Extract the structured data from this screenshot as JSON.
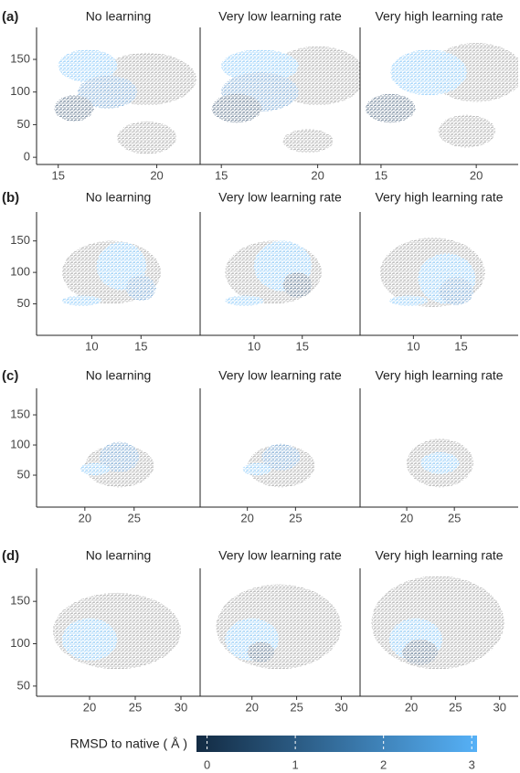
{
  "chart_data": [
    {
      "type": "scatter",
      "label": "(a)",
      "xlim": [
        13.9,
        22.2
      ],
      "xticks": [
        15,
        20
      ],
      "ylim": [
        -11,
        199
      ],
      "yticks": [
        0,
        50,
        100,
        150
      ],
      "panels": [
        {
          "title": "No learning",
          "clusters": [
            {
              "x": 19.5,
              "y": 120,
              "rx": 2.5,
              "ry": 40,
              "color": "#7f7f7f"
            },
            {
              "x": 19.5,
              "y": 30,
              "rx": 1.5,
              "ry": 25,
              "color": "#7f7f7f"
            },
            {
              "x": 16.5,
              "y": 140,
              "rx": 1.5,
              "ry": 25,
              "color": "#56b1f7"
            },
            {
              "x": 17.5,
              "y": 100,
              "rx": 1.5,
              "ry": 25,
              "color": "#3a7fc0"
            },
            {
              "x": 15.8,
              "y": 75,
              "rx": 1,
              "ry": 20,
              "color": "#1a3a5c"
            }
          ]
        },
        {
          "title": "Very low learning rate",
          "clusters": [
            {
              "x": 20,
              "y": 125,
              "rx": 2.5,
              "ry": 45,
              "color": "#7f7f7f"
            },
            {
              "x": 19.5,
              "y": 25,
              "rx": 1.3,
              "ry": 18,
              "color": "#7f7f7f"
            },
            {
              "x": 17,
              "y": 140,
              "rx": 2,
              "ry": 25,
              "color": "#56b1f7"
            },
            {
              "x": 17,
              "y": 100,
              "rx": 2,
              "ry": 30,
              "color": "#3a7fc0"
            },
            {
              "x": 15.8,
              "y": 75,
              "rx": 1.3,
              "ry": 22,
              "color": "#1a3a5c"
            }
          ]
        },
        {
          "title": "Very high learning rate",
          "clusters": [
            {
              "x": 20,
              "y": 130,
              "rx": 2.5,
              "ry": 45,
              "color": "#7f7f7f"
            },
            {
              "x": 19.5,
              "y": 40,
              "rx": 1.5,
              "ry": 25,
              "color": "#7f7f7f"
            },
            {
              "x": 17.5,
              "y": 130,
              "rx": 2,
              "ry": 35,
              "color": "#56b1f7"
            },
            {
              "x": 15.5,
              "y": 75,
              "rx": 1.3,
              "ry": 22,
              "color": "#1a3a5c"
            }
          ]
        }
      ]
    },
    {
      "type": "scatter",
      "label": "(b)",
      "xlim": [
        4.4,
        21
      ],
      "xticks": [
        10,
        15
      ],
      "ylim": [
        0,
        196
      ],
      "yticks": [
        50,
        100,
        150
      ],
      "panels": [
        {
          "title": "No learning",
          "clusters": [
            {
              "x": 12,
              "y": 100,
              "rx": 5,
              "ry": 50,
              "color": "#7f7f7f"
            },
            {
              "x": 13,
              "y": 110,
              "rx": 2.5,
              "ry": 38,
              "color": "#56b1f7"
            },
            {
              "x": 15,
              "y": 75,
              "rx": 1.5,
              "ry": 20,
              "color": "#3a7fc0"
            },
            {
              "x": 9,
              "y": 55,
              "rx": 2,
              "ry": 8,
              "color": "#56b1f7"
            }
          ]
        },
        {
          "title": "Very low learning rate",
          "clusters": [
            {
              "x": 12,
              "y": 100,
              "rx": 5,
              "ry": 50,
              "color": "#7f7f7f"
            },
            {
              "x": 13,
              "y": 110,
              "rx": 3,
              "ry": 40,
              "color": "#56b1f7"
            },
            {
              "x": 14.5,
              "y": 80,
              "rx": 1.5,
              "ry": 20,
              "color": "#1a3a5c"
            },
            {
              "x": 9,
              "y": 55,
              "rx": 2,
              "ry": 8,
              "color": "#56b1f7"
            }
          ]
        },
        {
          "title": "Very high learning rate",
          "clusters": [
            {
              "x": 12,
              "y": 100,
              "rx": 5.5,
              "ry": 55,
              "color": "#7f7f7f"
            },
            {
              "x": 13.5,
              "y": 90,
              "rx": 3,
              "ry": 40,
              "color": "#56b1f7"
            },
            {
              "x": 14.5,
              "y": 70,
              "rx": 1.8,
              "ry": 22,
              "color": "#3a7fc0"
            },
            {
              "x": 9.5,
              "y": 55,
              "rx": 2,
              "ry": 8,
              "color": "#56b1f7"
            }
          ]
        }
      ]
    },
    {
      "type": "scatter",
      "label": "(c)",
      "xlim": [
        15.1,
        31.7
      ],
      "xticks": [
        20,
        25
      ],
      "ylim": [
        -3,
        194
      ],
      "yticks": [
        50,
        100,
        150
      ],
      "panels": [
        {
          "title": "No learning",
          "clusters": [
            {
              "x": 23.5,
              "y": 65,
              "rx": 3.5,
              "ry": 35,
              "color": "#7f7f7f"
            },
            {
              "x": 23.5,
              "y": 80,
              "rx": 2,
              "ry": 25,
              "color": "#3a7fc0"
            },
            {
              "x": 21,
              "y": 60,
              "rx": 1.5,
              "ry": 10,
              "color": "#56b1f7"
            }
          ]
        },
        {
          "title": "Very low learning rate",
          "clusters": [
            {
              "x": 23.5,
              "y": 65,
              "rx": 3.5,
              "ry": 35,
              "color": "#7f7f7f"
            },
            {
              "x": 23.5,
              "y": 80,
              "rx": 2,
              "ry": 22,
              "color": "#3a7fc0"
            },
            {
              "x": 21,
              "y": 60,
              "rx": 1.5,
              "ry": 10,
              "color": "#56b1f7"
            }
          ]
        },
        {
          "title": "Very high learning rate",
          "clusters": [
            {
              "x": 23.5,
              "y": 70,
              "rx": 3.5,
              "ry": 40,
              "color": "#7f7f7f"
            },
            {
              "x": 23.5,
              "y": 70,
              "rx": 2,
              "ry": 18,
              "color": "#56b1f7"
            }
          ]
        }
      ]
    },
    {
      "type": "scatter",
      "label": "(d)",
      "xlim": [
        14.2,
        32.1
      ],
      "xticks": [
        20,
        25,
        30
      ],
      "ylim": [
        38,
        189
      ],
      "yticks": [
        50,
        100,
        150
      ],
      "panels": [
        {
          "title": "No learning",
          "clusters": [
            {
              "x": 23,
              "y": 115,
              "rx": 7,
              "ry": 45,
              "color": "#7f7f7f"
            },
            {
              "x": 20,
              "y": 105,
              "rx": 3,
              "ry": 25,
              "color": "#56b1f7"
            }
          ]
        },
        {
          "title": "Very low learning rate",
          "clusters": [
            {
              "x": 23,
              "y": 120,
              "rx": 7,
              "ry": 50,
              "color": "#7f7f7f"
            },
            {
              "x": 20,
              "y": 105,
              "rx": 3,
              "ry": 25,
              "color": "#56b1f7"
            },
            {
              "x": 21,
              "y": 90,
              "rx": 1.5,
              "ry": 12,
              "color": "#1a3a5c"
            }
          ]
        },
        {
          "title": "Very high learning rate",
          "clusters": [
            {
              "x": 23,
              "y": 125,
              "rx": 7.5,
              "ry": 55,
              "color": "#7f7f7f"
            },
            {
              "x": 20.5,
              "y": 105,
              "rx": 3,
              "ry": 25,
              "color": "#56b1f7"
            },
            {
              "x": 21,
              "y": 90,
              "rx": 2,
              "ry": 15,
              "color": "#1a3a5c"
            }
          ]
        }
      ]
    }
  ],
  "colorbar": {
    "title": "RMSD to native ( Å )",
    "lim": [
      -0.12,
      3.06
    ],
    "ticks": [
      0,
      1,
      2,
      3
    ],
    "colors": [
      "#132b43",
      "#56b1f7"
    ]
  }
}
